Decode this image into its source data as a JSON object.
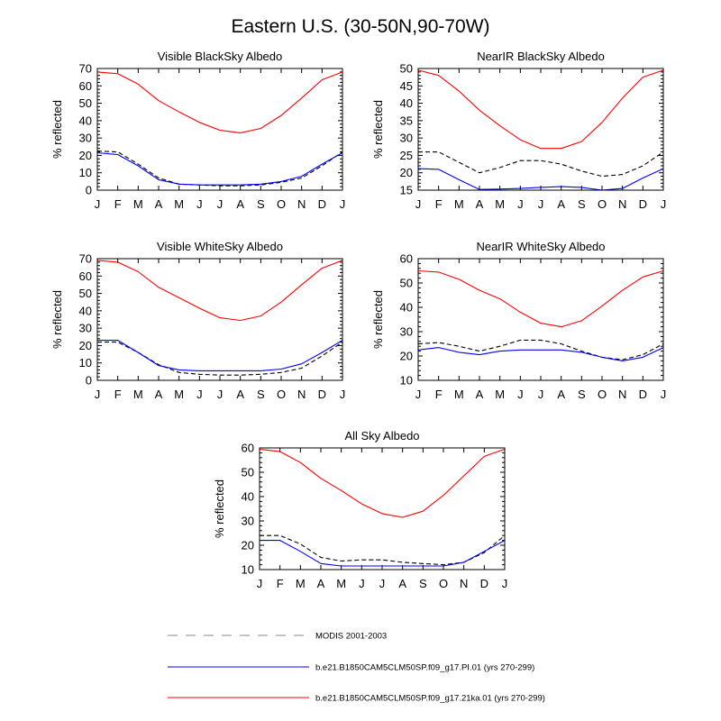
{
  "figure_title": "Eastern U.S. (30-50N,90-70W)",
  "colors": {
    "modis": "#000000",
    "pi": "#0000ff",
    "ka21": "#ff0000"
  },
  "legend": [
    {
      "key": "modis",
      "label": "MODIS 2001-2003",
      "style": "dashed"
    },
    {
      "key": "pi",
      "label": "b.e21.B1850CAM5CLM50SP.f09_g17.PI.01 (yrs 270-299)",
      "style": "solid"
    },
    {
      "key": "ka21",
      "label": "b.e21.B1850CAM5CLM50SP.f09_g17.21ka.01 (yrs 270-299)",
      "style": "solid"
    }
  ],
  "chart_data": [
    {
      "type": "line",
      "title": "Visible BlackSky Albedo",
      "xlabel": "",
      "ylabel": "% reflected",
      "categories": [
        "J",
        "F",
        "M",
        "A",
        "M",
        "J",
        "J",
        "A",
        "S",
        "O",
        "N",
        "D",
        "J"
      ],
      "ylim": [
        0,
        70
      ],
      "yticks": [
        0,
        10,
        20,
        30,
        40,
        50,
        60,
        70
      ],
      "series": [
        {
          "key": "modis",
          "name": "MODIS 2001-2003",
          "values": [
            22.5,
            22,
            15,
            7,
            3.5,
            3,
            2.5,
            2.5,
            3,
            4.5,
            7,
            14,
            22
          ]
        },
        {
          "key": "pi",
          "name": "b.e21.B1850CAM5CLM50SP.f09_g17.PI.01 (yrs 270-299)",
          "values": [
            21.5,
            20.5,
            14,
            6,
            3.5,
            3,
            3,
            3,
            3.5,
            5,
            8,
            15,
            21.5
          ]
        },
        {
          "key": "ka21",
          "name": "b.e21.B1850CAM5CLM50SP.f09_g17.21ka.01 (yrs 270-299)",
          "values": [
            68,
            67,
            61,
            51.5,
            45,
            39,
            34.5,
            33,
            35.5,
            43,
            53,
            63.5,
            68
          ]
        }
      ]
    },
    {
      "type": "line",
      "title": "NearIR BlackSky Albedo",
      "xlabel": "",
      "ylabel": "% reflected",
      "categories": [
        "J",
        "F",
        "M",
        "A",
        "M",
        "J",
        "J",
        "A",
        "S",
        "O",
        "N",
        "D",
        "J"
      ],
      "ylim": [
        15,
        50
      ],
      "yticks": [
        15,
        20,
        25,
        30,
        35,
        40,
        45,
        50
      ],
      "series": [
        {
          "key": "modis",
          "name": "MODIS 2001-2003",
          "values": [
            26,
            26,
            23,
            20,
            21.5,
            23.5,
            23.5,
            22.5,
            20.5,
            19,
            19.5,
            22,
            26
          ]
        },
        {
          "key": "pi",
          "name": "b.e21.B1850CAM5CLM50SP.f09_g17.PI.01 (yrs 270-299)",
          "values": [
            21.2,
            21,
            18,
            15.2,
            15.3,
            15.5,
            15.8,
            16,
            15.8,
            15,
            15.5,
            18.5,
            21.2
          ]
        },
        {
          "key": "ka21",
          "name": "b.e21.B1850CAM5CLM50SP.f09_g17.21ka.01 (yrs 270-299)",
          "values": [
            49.5,
            48,
            43.5,
            38,
            33.5,
            29.5,
            27,
            27,
            29,
            34.5,
            41.5,
            47.5,
            49.5
          ]
        }
      ]
    },
    {
      "type": "line",
      "title": "Visible WhiteSky Albedo",
      "xlabel": "",
      "ylabel": "% reflected",
      "categories": [
        "J",
        "F",
        "M",
        "A",
        "M",
        "J",
        "J",
        "A",
        "S",
        "O",
        "N",
        "D",
        "J"
      ],
      "ylim": [
        0,
        70
      ],
      "yticks": [
        0,
        10,
        20,
        30,
        40,
        50,
        60,
        70
      ],
      "series": [
        {
          "key": "modis",
          "name": "MODIS 2001-2003",
          "values": [
            22,
            22,
            16,
            9,
            4.5,
            3.5,
            3,
            3,
            3.5,
            4.5,
            7,
            14,
            22
          ]
        },
        {
          "key": "pi",
          "name": "b.e21.B1850CAM5CLM50SP.f09_g17.PI.01 (yrs 270-299)",
          "values": [
            23,
            23,
            16,
            8.5,
            6,
            5.5,
            5.5,
            5.5,
            5.5,
            6.5,
            9.5,
            16,
            23
          ]
        },
        {
          "key": "ka21",
          "name": "b.e21.B1850CAM5CLM50SP.f09_g17.21ka.01 (yrs 270-299)",
          "values": [
            69,
            68,
            62.5,
            53.5,
            47.5,
            41.5,
            36,
            34.5,
            37,
            45,
            55,
            64.5,
            69
          ]
        }
      ]
    },
    {
      "type": "line",
      "title": "NearIR WhiteSky Albedo",
      "xlabel": "",
      "ylabel": "% reflected",
      "categories": [
        "J",
        "F",
        "M",
        "A",
        "M",
        "J",
        "J",
        "A",
        "S",
        "O",
        "N",
        "D",
        "J"
      ],
      "ylim": [
        10,
        60
      ],
      "yticks": [
        10,
        20,
        30,
        40,
        50,
        60
      ],
      "series": [
        {
          "key": "modis",
          "name": "MODIS 2001-2003",
          "values": [
            25,
            25.5,
            24,
            22,
            24,
            26.5,
            26.5,
            25,
            22,
            19.5,
            18.5,
            20.5,
            25
          ]
        },
        {
          "key": "pi",
          "name": "b.e21.B1850CAM5CLM50SP.f09_g17.PI.01 (yrs 270-299)",
          "values": [
            22.5,
            23.5,
            21.5,
            20.5,
            22,
            22.5,
            22.5,
            22.5,
            21.5,
            19.5,
            18,
            19.5,
            23.5
          ]
        },
        {
          "key": "ka21",
          "name": "b.e21.B1850CAM5CLM50SP.f09_g17.21ka.01 (yrs 270-299)",
          "values": [
            55,
            54.5,
            51.5,
            47,
            43.5,
            38,
            33.5,
            32,
            34.5,
            40.5,
            47,
            52.5,
            55
          ]
        }
      ]
    },
    {
      "type": "line",
      "title": "All Sky Albedo",
      "xlabel": "",
      "ylabel": "% reflected",
      "categories": [
        "J",
        "F",
        "M",
        "A",
        "M",
        "J",
        "J",
        "A",
        "S",
        "O",
        "N",
        "D",
        "J"
      ],
      "ylim": [
        10,
        60
      ],
      "yticks": [
        10,
        20,
        30,
        40,
        50,
        60
      ],
      "series": [
        {
          "key": "modis",
          "name": "MODIS 2001-2003",
          "values": [
            24,
            24,
            20.5,
            15,
            13.5,
            14,
            14,
            13,
            12.5,
            12,
            13,
            17,
            24
          ]
        },
        {
          "key": "pi",
          "name": "b.e21.B1850CAM5CLM50SP.f09_g17.PI.01 (yrs 270-299)",
          "values": [
            22,
            22,
            17.5,
            12.5,
            11.5,
            11.5,
            11.5,
            11.5,
            11.5,
            11.5,
            13,
            17.5,
            22
          ]
        },
        {
          "key": "ka21",
          "name": "b.e21.B1850CAM5CLM50SP.f09_g17.21ka.01 (yrs 270-299)",
          "values": [
            59.5,
            58.5,
            54,
            47.5,
            42.5,
            37,
            33,
            31.5,
            34,
            40.5,
            48.5,
            56.5,
            59.5
          ]
        }
      ]
    }
  ]
}
